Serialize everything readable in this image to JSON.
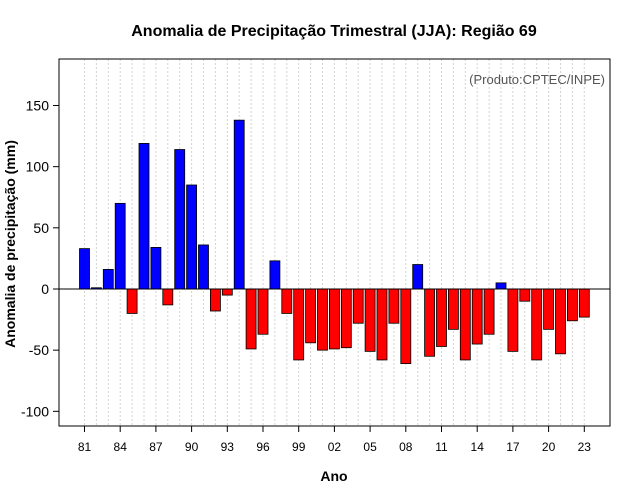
{
  "chart_data": {
    "type": "bar",
    "title": "Anomalia de Precipitação Trimestral (JJA): Região 69",
    "xlabel": "Ano",
    "ylabel": "Anomalia de precipitação (mm)",
    "credit": "(Produto:CPTEC/INPE)",
    "ylim": [
      -112,
      188
    ],
    "yticks": [
      -100,
      -50,
      0,
      50,
      100,
      150
    ],
    "xtick_labels": [
      "81",
      "84",
      "87",
      "90",
      "93",
      "96",
      "99",
      "02",
      "05",
      "08",
      "11",
      "14",
      "17",
      "20",
      "23"
    ],
    "years": [
      1981,
      1982,
      1983,
      1984,
      1985,
      1986,
      1987,
      1988,
      1989,
      1990,
      1991,
      1992,
      1993,
      1994,
      1995,
      1996,
      1997,
      1998,
      1999,
      2000,
      2001,
      2002,
      2003,
      2004,
      2005,
      2006,
      2007,
      2008,
      2009,
      2010,
      2011,
      2012,
      2013,
      2014,
      2015,
      2016,
      2017,
      2018,
      2019,
      2020,
      2021,
      2022,
      2023
    ],
    "values": [
      33,
      1,
      16,
      70,
      -20,
      119,
      34,
      -13,
      114,
      85,
      36,
      -18,
      -5,
      138,
      -49,
      -37,
      23,
      -20,
      -58,
      -44,
      -50,
      -49,
      -48,
      -28,
      -51,
      -58,
      -28,
      -61,
      20,
      -55,
      -47,
      -33,
      -58,
      -45,
      -37,
      5,
      -51,
      -10,
      -58,
      -33,
      -53,
      -26,
      -23
    ],
    "positive_color": "#0000ff",
    "negative_color": "#ff0000",
    "grid": true
  }
}
